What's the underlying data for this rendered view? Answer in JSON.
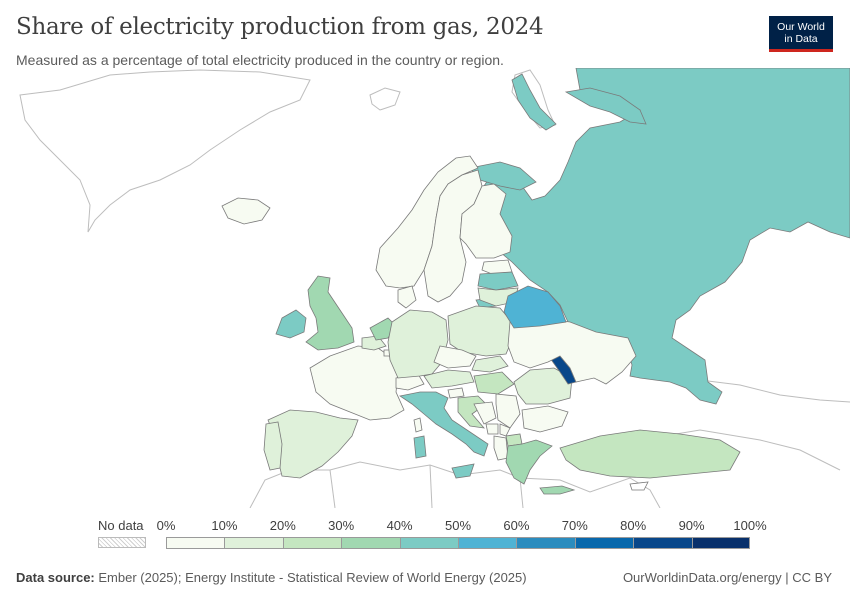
{
  "header": {
    "title": "Share of electricity production from gas, 2024",
    "subtitle": "Measured as a percentage of total electricity produced in the country or region.",
    "logo_line1": "Our World",
    "logo_line2": "in Data"
  },
  "legend": {
    "no_data_label": "No data",
    "ticks": [
      "0%",
      "10%",
      "20%",
      "30%",
      "40%",
      "50%",
      "60%",
      "70%",
      "80%",
      "90%",
      "100%"
    ],
    "colors": [
      "#f7fbf2",
      "#dff1da",
      "#c4e6c0",
      "#a1d8b1",
      "#7ccbc4",
      "#4fb3d4",
      "#2b8cbe",
      "#0868ac",
      "#08478a",
      "#08306b"
    ],
    "no_data_color": "#ffffff",
    "border_color": "#7a7a7a"
  },
  "map_data": {
    "metric": "share of electricity production from gas",
    "year": 2024,
    "regions": [
      {
        "name": "Russia",
        "value": 45
      },
      {
        "name": "Belarus",
        "value": 54
      },
      {
        "name": "Moldova",
        "value": 88
      },
      {
        "name": "Ireland",
        "value": 46
      },
      {
        "name": "Italy",
        "value": 45
      },
      {
        "name": "United Kingdom",
        "value": 32
      },
      {
        "name": "Netherlands",
        "value": 38
      },
      {
        "name": "Greece",
        "value": 38
      },
      {
        "name": "Latvia",
        "value": 40
      },
      {
        "name": "Lithuania",
        "value": 14
      },
      {
        "name": "Estonia",
        "value": 4
      },
      {
        "name": "Finland",
        "value": 3
      },
      {
        "name": "Sweden",
        "value": 1
      },
      {
        "name": "Norway",
        "value": 1
      },
      {
        "name": "Iceland",
        "value": 0
      },
      {
        "name": "Denmark",
        "value": 5
      },
      {
        "name": "Germany",
        "value": 16
      },
      {
        "name": "Poland",
        "value": 14
      },
      {
        "name": "France",
        "value": 3
      },
      {
        "name": "Spain",
        "value": 16
      },
      {
        "name": "Portugal",
        "value": 19
      },
      {
        "name": "Belgium",
        "value": 18
      },
      {
        "name": "Switzerland",
        "value": 1
      },
      {
        "name": "Austria",
        "value": 14
      },
      {
        "name": "Czechia",
        "value": 6
      },
      {
        "name": "Slovakia",
        "value": 12
      },
      {
        "name": "Hungary",
        "value": 20
      },
      {
        "name": "Romania",
        "value": 16
      },
      {
        "name": "Bulgaria",
        "value": 6
      },
      {
        "name": "Serbia",
        "value": 4
      },
      {
        "name": "Croatia",
        "value": 22
      },
      {
        "name": "Slovenia",
        "value": 4
      },
      {
        "name": "Bosnia and Herzegovina",
        "value": 0
      },
      {
        "name": "Montenegro",
        "value": 0
      },
      {
        "name": "North Macedonia",
        "value": 20
      },
      {
        "name": "Albania",
        "value": 0
      },
      {
        "name": "Kosovo",
        "value": 0
      },
      {
        "name": "Ukraine",
        "value": 8
      },
      {
        "name": "Luxembourg",
        "value": 5
      },
      {
        "name": "Cyprus",
        "value": null
      },
      {
        "name": "Turkey",
        "value": 20
      }
    ]
  },
  "footer": {
    "source_label": "Data source:",
    "source_text": "Ember (2025); Energy Institute - Statistical Review of World Energy (2025)",
    "url_text": "OurWorldinData.org/energy | CC BY"
  }
}
